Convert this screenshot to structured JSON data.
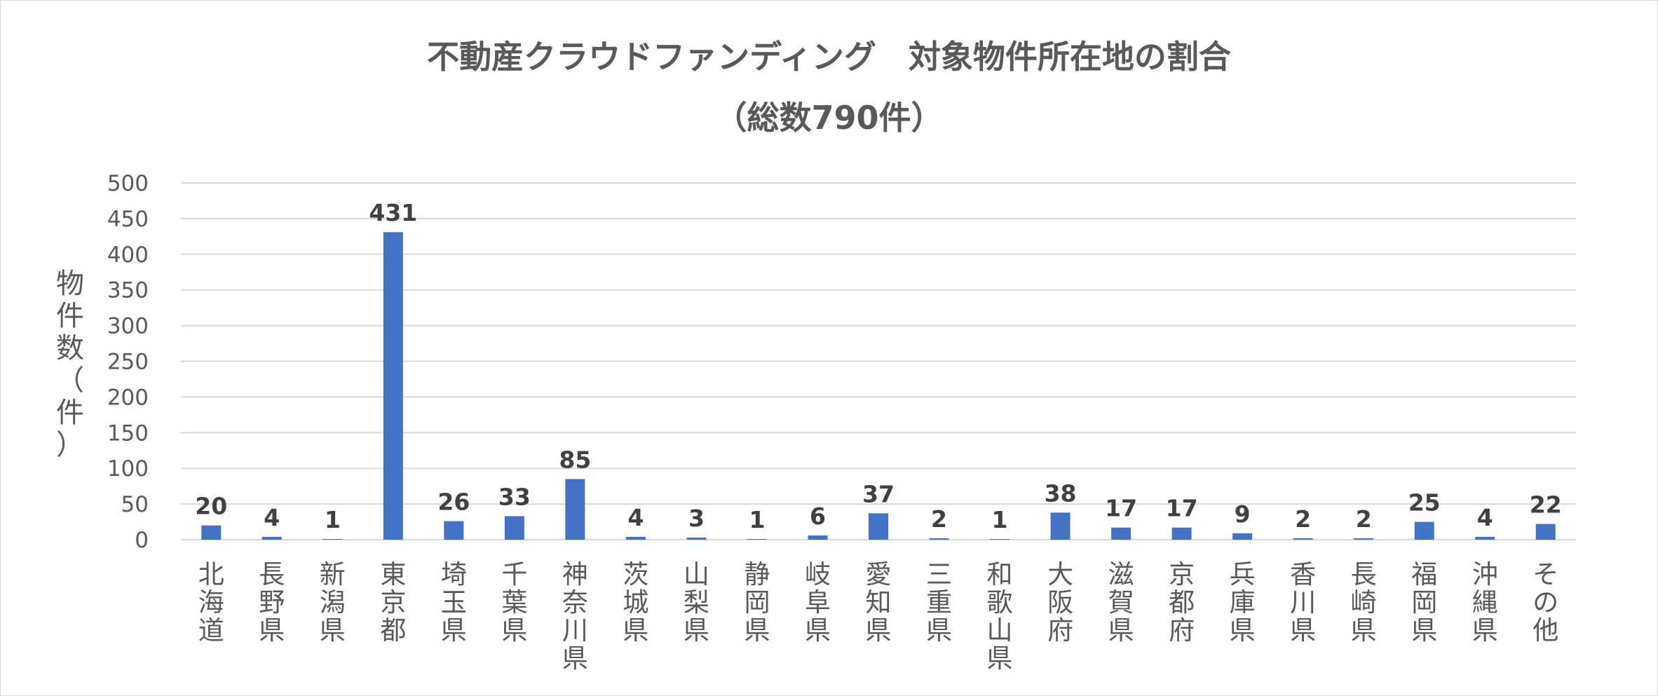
{
  "chart_data": {
    "type": "bar",
    "title": "不動産クラウドファンディング　対象物件所在地の割合",
    "subtitle": "（総数790件）",
    "xlabel": "",
    "ylabel": "物件数（件）",
    "ylim": [
      0,
      500
    ],
    "yticks": [
      0,
      50,
      100,
      150,
      200,
      250,
      300,
      350,
      400,
      450,
      500
    ],
    "grid": true,
    "legend": "none",
    "categories": [
      "北海道",
      "長野県",
      "新潟県",
      "東京都",
      "埼玉県",
      "千葉県",
      "神奈川県",
      "茨城県",
      "山梨県",
      "静岡県",
      "岐阜県",
      "愛知県",
      "三重県",
      "和歌山県",
      "大阪府",
      "滋賀県",
      "京都府",
      "兵庫県",
      "香川県",
      "長崎県",
      "福岡県",
      "沖縄県",
      "その他"
    ],
    "values": [
      20,
      4,
      1,
      431,
      26,
      33,
      85,
      4,
      3,
      1,
      6,
      37,
      2,
      1,
      38,
      17,
      17,
      9,
      2,
      2,
      25,
      4,
      22
    ],
    "bar_color": "#4472c4",
    "grid_color": "#d9d9d9"
  }
}
